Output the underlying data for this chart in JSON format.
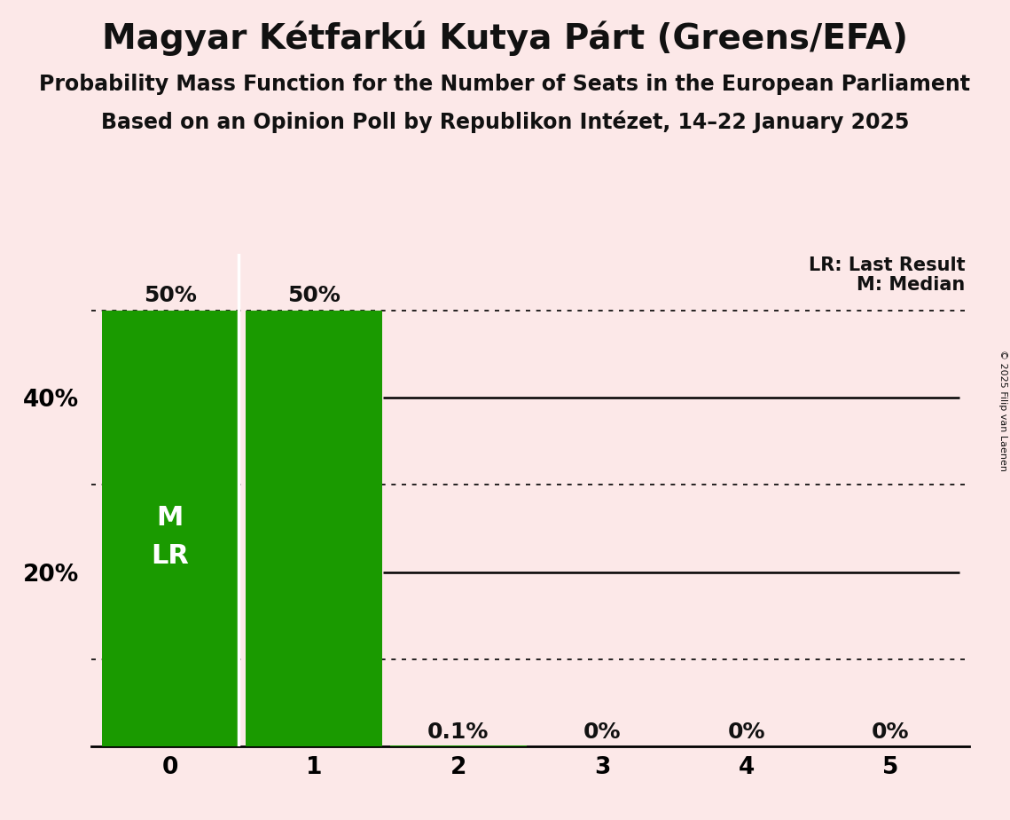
{
  "title": "Magyar Kétfarkú Kutya Párt (Greens/EFA)",
  "subtitle1": "Probability Mass Function for the Number of Seats in the European Parliament",
  "subtitle2": "Based on an Opinion Poll by Republikon Intézet, 14–22 January 2025",
  "copyright": "© 2025 Filip van Laenen",
  "categories": [
    0,
    1,
    2,
    3,
    4,
    5
  ],
  "values": [
    0.5,
    0.5,
    0.001,
    0.0,
    0.0,
    0.0
  ],
  "bar_labels": [
    "50%",
    "50%",
    "0.1%",
    "0%",
    "0%",
    "0%"
  ],
  "bar_color": "#1a9a00",
  "background_color": "#fce8e8",
  "ylim": [
    0,
    0.565
  ],
  "solid_lines": [
    0.2,
    0.4
  ],
  "dotted_lines": [
    0.1,
    0.3,
    0.5
  ],
  "legend_lr": "LR: Last Result",
  "legend_m": "M: Median",
  "title_fontsize": 28,
  "subtitle_fontsize": 17,
  "bar_label_fontsize": 18,
  "tick_fontsize": 19,
  "inside_label_fontsize": 22
}
